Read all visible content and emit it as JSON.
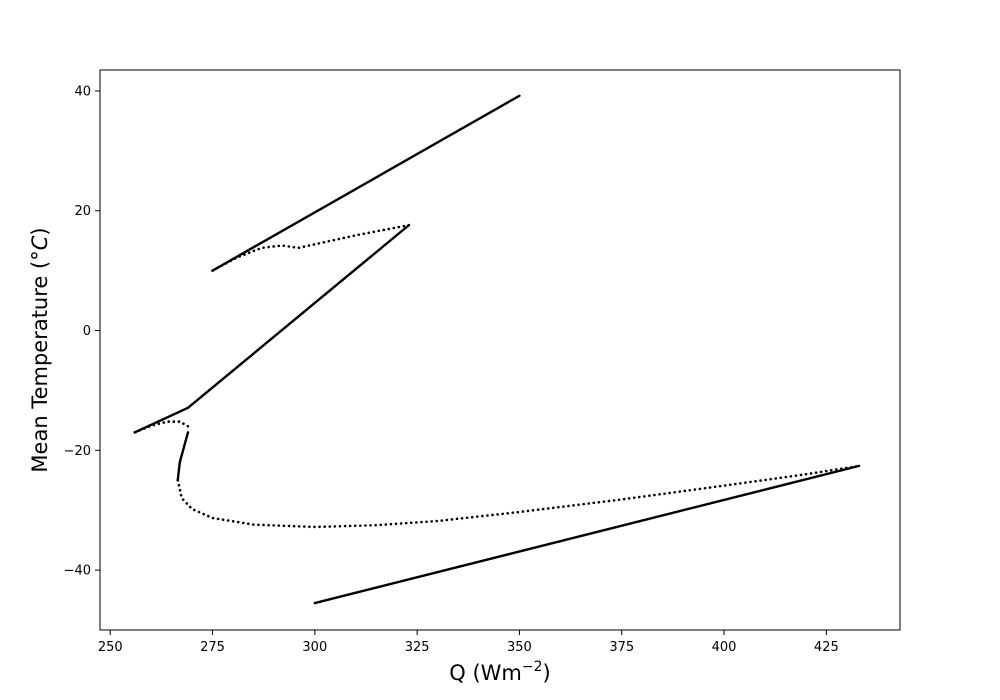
{
  "chart_data": {
    "type": "line",
    "title": "",
    "xlabel": "Q (Wm",
    "xlabel_sup": "−2",
    "xlabel_tail": ")",
    "ylabel": "Mean Temperature (",
    "ylabel_math": "°C",
    "ylabel_tail": ")",
    "xlim": [
      247.5,
      443
    ],
    "ylim": [
      -50,
      43.5
    ],
    "xticks": [
      250,
      275,
      300,
      325,
      350,
      375,
      400,
      425
    ],
    "yticks": [
      -40,
      -20,
      0,
      20,
      40
    ],
    "xtick_labels": [
      "250",
      "275",
      "300",
      "325",
      "350",
      "375",
      "400",
      "425"
    ],
    "ytick_labels": [
      "−40",
      "−20",
      "0",
      "20",
      "40"
    ],
    "grid": false,
    "legend": "none",
    "color": "#000000",
    "series": [
      {
        "style": "solid",
        "points": [
          [
            275,
            10
          ],
          [
            350,
            39.2
          ]
        ]
      },
      {
        "style": "dotted",
        "points": [
          [
            275,
            10
          ],
          [
            281,
            12.2
          ],
          [
            287,
            13.8
          ],
          [
            292,
            14.2
          ],
          [
            296,
            13.8
          ],
          [
            300,
            14.4
          ],
          [
            310,
            15.9
          ],
          [
            323,
            17.6
          ]
        ]
      },
      {
        "style": "solid",
        "points": [
          [
            256,
            -17
          ],
          [
            269,
            -12.9
          ],
          [
            323,
            17.6
          ]
        ]
      },
      {
        "style": "dotted",
        "points": [
          [
            256,
            -17
          ],
          [
            260,
            -15.9
          ],
          [
            264,
            -15.2
          ],
          [
            267,
            -15.2
          ],
          [
            269,
            -16
          ]
        ]
      },
      {
        "style": "solid",
        "points": [
          [
            269,
            -17
          ],
          [
            268,
            -19.5
          ],
          [
            267,
            -22
          ],
          [
            266.5,
            -25
          ]
        ]
      },
      {
        "style": "dotted",
        "points": [
          [
            266.5,
            -25
          ],
          [
            267.5,
            -28
          ],
          [
            270,
            -29.8
          ],
          [
            275,
            -31.3
          ],
          [
            285,
            -32.4
          ],
          [
            300,
            -32.8
          ],
          [
            315,
            -32.5
          ],
          [
            330,
            -31.8
          ],
          [
            350,
            -30.3
          ],
          [
            375,
            -28.2
          ],
          [
            400,
            -25.9
          ],
          [
            420,
            -24
          ],
          [
            433,
            -22.6
          ]
        ]
      },
      {
        "style": "solid",
        "points": [
          [
            300,
            -45.5
          ],
          [
            433,
            -22.6
          ]
        ]
      }
    ]
  }
}
